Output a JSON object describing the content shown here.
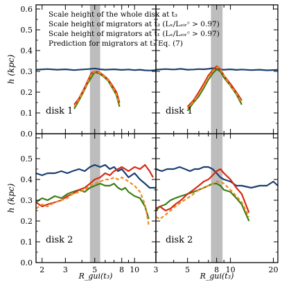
{
  "colors": {
    "whole_disk": "#1a3e6e",
    "migrators_t3": "#d42a14",
    "migrators_t1": "#3a7d12",
    "prediction": "#f08a1c",
    "band": "#bdbdbd"
  },
  "legend": [
    {
      "key": "whole",
      "text": "Scale height of the whole disk at t₃",
      "color_key": "whole_disk"
    },
    {
      "key": "mig3",
      "text": "Scale height of migrators at t₃ (Lₓ/Lₑᵢᵣᶜ > 0.97)",
      "color_key": "migrators_t3"
    },
    {
      "key": "mig1",
      "text": "Scale height of migrators at t₁ (Lₓ/Lₑᵢᵣᶜ > 0.97)",
      "color_key": "migrators_t1"
    },
    {
      "key": "pred",
      "text": "Prediction for migrators at t₃ Eq. (7)",
      "color_key": "prediction"
    }
  ],
  "y_axis_label": "h (kpc)",
  "x_axis_label": "R_gui(t₃)",
  "chart_data": [
    {
      "type": "line",
      "panel": "top-left",
      "label": "disk 1",
      "xscale": "log",
      "xlim": [
        1.8,
        14.5
      ],
      "ylim": [
        0.0,
        0.62
      ],
      "xticks": [
        2,
        3,
        5,
        8,
        10
      ],
      "yticks": [
        0.0,
        0.1,
        0.2,
        0.3,
        0.4,
        0.5,
        0.6
      ],
      "band": [
        4.6,
        5.5
      ],
      "series": [
        {
          "key": "whole",
          "x": [
            1.8,
            2.2,
            2.6,
            3.0,
            3.5,
            4.0,
            4.5,
            5.0,
            5.5,
            6.0,
            7.0,
            8.0,
            9.0,
            10,
            11,
            12,
            13,
            14.5
          ],
          "y": [
            0.308,
            0.311,
            0.308,
            0.31,
            0.306,
            0.309,
            0.311,
            0.314,
            0.31,
            0.308,
            0.31,
            0.307,
            0.309,
            0.306,
            0.308,
            0.305,
            0.304,
            0.306
          ]
        },
        {
          "key": "mig3",
          "x": [
            3.5,
            3.8,
            4.1,
            4.4,
            4.7,
            5.0,
            5.4,
            5.8,
            6.3,
            6.8,
            7.3,
            7.7
          ],
          "y": [
            0.14,
            0.17,
            0.21,
            0.25,
            0.29,
            0.3,
            0.296,
            0.282,
            0.262,
            0.232,
            0.2,
            0.15
          ]
        },
        {
          "key": "mig1",
          "x": [
            3.5,
            3.8,
            4.1,
            4.4,
            4.7,
            5.0,
            5.4,
            5.8,
            6.3,
            6.8,
            7.3,
            7.7
          ],
          "y": [
            0.12,
            0.16,
            0.2,
            0.24,
            0.27,
            0.296,
            0.29,
            0.276,
            0.255,
            0.22,
            0.185,
            0.13
          ]
        },
        {
          "key": "pred",
          "x": [
            3.5,
            3.8,
            4.1,
            4.4,
            4.7,
            5.0,
            5.4,
            5.8,
            6.3,
            6.8,
            7.3,
            7.7
          ],
          "y": [
            0.13,
            0.165,
            0.205,
            0.245,
            0.282,
            0.3,
            0.294,
            0.279,
            0.258,
            0.225,
            0.19,
            0.14
          ]
        }
      ]
    },
    {
      "type": "line",
      "panel": "top-right",
      "label": "disk 1",
      "xscale": "log",
      "xlim": [
        3.0,
        21.5
      ],
      "ylim": [
        0.0,
        0.62
      ],
      "xticks": [
        3,
        5,
        8,
        10,
        20
      ],
      "yticks": [
        0.0,
        0.1,
        0.2,
        0.3,
        0.4,
        0.5,
        0.6
      ],
      "band": [
        7.3,
        8.8
      ],
      "series": [
        {
          "key": "whole",
          "x": [
            3.0,
            3.5,
            4.0,
            4.5,
            5.0,
            5.5,
            6.0,
            6.5,
            7.0,
            7.5,
            8.0,
            8.5,
            9.0,
            10,
            11,
            12,
            14,
            16,
            18,
            21.5
          ],
          "y": [
            0.308,
            0.311,
            0.309,
            0.312,
            0.308,
            0.309,
            0.311,
            0.31,
            0.312,
            0.315,
            0.313,
            0.309,
            0.308,
            0.31,
            0.307,
            0.309,
            0.306,
            0.308,
            0.305,
            0.307
          ]
        },
        {
          "key": "mig3",
          "x": [
            5.0,
            5.5,
            6.0,
            6.5,
            7.0,
            7.5,
            8.0,
            8.5,
            9.0,
            10.0,
            11.0,
            12.0
          ],
          "y": [
            0.13,
            0.16,
            0.2,
            0.24,
            0.28,
            0.305,
            0.325,
            0.31,
            0.28,
            0.24,
            0.2,
            0.16
          ]
        },
        {
          "key": "mig1",
          "x": [
            5.0,
            5.5,
            6.0,
            6.5,
            7.0,
            7.5,
            8.0,
            8.5,
            9.0,
            10.0,
            11.0,
            12.0
          ],
          "y": [
            0.11,
            0.15,
            0.18,
            0.22,
            0.26,
            0.29,
            0.31,
            0.3,
            0.27,
            0.23,
            0.19,
            0.14
          ]
        },
        {
          "key": "pred",
          "x": [
            5.0,
            5.5,
            6.0,
            6.5,
            7.0,
            7.5,
            8.0,
            8.5,
            9.0,
            10.0,
            11.0,
            12.0
          ],
          "y": [
            0.12,
            0.155,
            0.19,
            0.23,
            0.27,
            0.3,
            0.32,
            0.31,
            0.28,
            0.23,
            0.195,
            0.15
          ]
        }
      ]
    },
    {
      "type": "line",
      "panel": "bottom-left",
      "label": "disk 2",
      "xscale": "log",
      "xlim": [
        1.8,
        14.5
      ],
      "ylim": [
        0.0,
        0.62
      ],
      "xticks": [
        2,
        3,
        5,
        8,
        10
      ],
      "yticks": [
        0.0,
        0.1,
        0.2,
        0.3,
        0.4,
        0.5,
        0.6
      ],
      "band": [
        4.6,
        5.5
      ],
      "series": [
        {
          "key": "whole",
          "x": [
            1.8,
            2.0,
            2.2,
            2.5,
            2.8,
            3.1,
            3.4,
            3.8,
            4.2,
            4.6,
            5.0,
            5.5,
            6.0,
            6.5,
            7.0,
            7.5,
            8.0,
            8.5,
            9.0,
            10,
            11,
            12,
            13,
            14.5
          ],
          "y": [
            0.43,
            0.42,
            0.43,
            0.43,
            0.44,
            0.43,
            0.44,
            0.45,
            0.44,
            0.46,
            0.47,
            0.46,
            0.47,
            0.45,
            0.46,
            0.44,
            0.45,
            0.43,
            0.41,
            0.43,
            0.4,
            0.38,
            0.36,
            0.36
          ]
        },
        {
          "key": "mig3",
          "x": [
            1.8,
            2.0,
            2.2,
            2.5,
            2.8,
            3.1,
            3.4,
            3.8,
            4.2,
            4.6,
            5.0,
            5.5,
            6.0,
            6.5,
            7.0,
            7.5,
            8.0,
            8.5,
            9.0,
            10,
            11,
            12,
            13,
            13.8
          ],
          "y": [
            0.29,
            0.27,
            0.28,
            0.29,
            0.3,
            0.32,
            0.33,
            0.35,
            0.36,
            0.38,
            0.4,
            0.41,
            0.43,
            0.42,
            0.44,
            0.45,
            0.46,
            0.45,
            0.44,
            0.46,
            0.45,
            0.47,
            0.44,
            0.41
          ]
        },
        {
          "key": "mig1",
          "x": [
            1.8,
            2.0,
            2.2,
            2.5,
            2.8,
            3.1,
            3.4,
            3.8,
            4.2,
            4.6,
            5.0,
            5.5,
            6.0,
            6.5,
            7.0,
            7.5,
            8.0,
            8.5,
            9.0,
            10,
            11,
            12,
            12.8
          ],
          "y": [
            0.29,
            0.31,
            0.3,
            0.32,
            0.31,
            0.33,
            0.34,
            0.35,
            0.34,
            0.36,
            0.37,
            0.38,
            0.37,
            0.37,
            0.38,
            0.36,
            0.35,
            0.36,
            0.34,
            0.32,
            0.31,
            0.27,
            0.21
          ]
        },
        {
          "key": "pred",
          "x": [
            1.8,
            2.0,
            2.2,
            2.5,
            2.8,
            3.1,
            3.4,
            3.8,
            4.2,
            4.6,
            5.0,
            5.5,
            6.0,
            6.5,
            7.0,
            7.5,
            8.0,
            8.5,
            9.0,
            10,
            11,
            12,
            12.8
          ],
          "y": [
            0.26,
            0.28,
            0.27,
            0.29,
            0.3,
            0.31,
            0.33,
            0.34,
            0.35,
            0.37,
            0.38,
            0.39,
            0.4,
            0.4,
            0.41,
            0.4,
            0.41,
            0.4,
            0.39,
            0.37,
            0.34,
            0.28,
            0.18
          ]
        }
      ]
    },
    {
      "type": "line",
      "panel": "bottom-right",
      "label": "disk 2",
      "xscale": "log",
      "xlim": [
        3.0,
        21.5
      ],
      "ylim": [
        0.0,
        0.62
      ],
      "xticks": [
        3,
        5,
        8,
        10,
        20
      ],
      "yticks": [
        0.0,
        0.1,
        0.2,
        0.3,
        0.4,
        0.5,
        0.6
      ],
      "band": [
        7.3,
        8.8
      ],
      "series": [
        {
          "key": "whole",
          "x": [
            3.0,
            3.3,
            3.6,
            4.0,
            4.4,
            4.8,
            5.2,
            5.6,
            6.0,
            6.5,
            7.0,
            7.5,
            8.0,
            8.5,
            9.0,
            10,
            11,
            12,
            14,
            16,
            18,
            20,
            21.5
          ],
          "y": [
            0.45,
            0.44,
            0.45,
            0.45,
            0.46,
            0.45,
            0.44,
            0.45,
            0.45,
            0.46,
            0.46,
            0.45,
            0.43,
            0.41,
            0.4,
            0.39,
            0.37,
            0.37,
            0.36,
            0.37,
            0.37,
            0.39,
            0.37
          ]
        },
        {
          "key": "mig3",
          "x": [
            3.0,
            3.2,
            3.5,
            3.8,
            4.1,
            4.5,
            5.0,
            5.5,
            6.0,
            6.5,
            7.0,
            7.5,
            8.0,
            8.5,
            9.0,
            10,
            11,
            12,
            13.5
          ],
          "y": [
            0.26,
            0.27,
            0.25,
            0.26,
            0.28,
            0.3,
            0.33,
            0.35,
            0.37,
            0.39,
            0.4,
            0.42,
            0.44,
            0.45,
            0.43,
            0.4,
            0.36,
            0.33,
            0.24
          ]
        },
        {
          "key": "mig1",
          "x": [
            3.0,
            3.2,
            3.5,
            3.8,
            4.1,
            4.5,
            5.0,
            5.5,
            6.0,
            6.5,
            7.0,
            7.5,
            8.0,
            8.5,
            9.0,
            10,
            11,
            12,
            13.5
          ],
          "y": [
            0.25,
            0.27,
            0.28,
            0.3,
            0.31,
            0.32,
            0.33,
            0.34,
            0.35,
            0.36,
            0.37,
            0.38,
            0.38,
            0.37,
            0.35,
            0.34,
            0.31,
            0.28,
            0.2
          ]
        },
        {
          "key": "pred",
          "x": [
            3.0,
            3.2,
            3.5,
            3.8,
            4.1,
            4.5,
            5.0,
            5.5,
            6.0,
            6.5,
            7.0,
            7.5,
            8.0,
            8.5,
            9.0,
            10,
            11,
            12,
            13.5
          ],
          "y": [
            0.22,
            0.21,
            0.23,
            0.25,
            0.27,
            0.29,
            0.31,
            0.33,
            0.35,
            0.36,
            0.37,
            0.38,
            0.39,
            0.39,
            0.38,
            0.35,
            0.32,
            0.29,
            0.22
          ]
        }
      ]
    }
  ]
}
